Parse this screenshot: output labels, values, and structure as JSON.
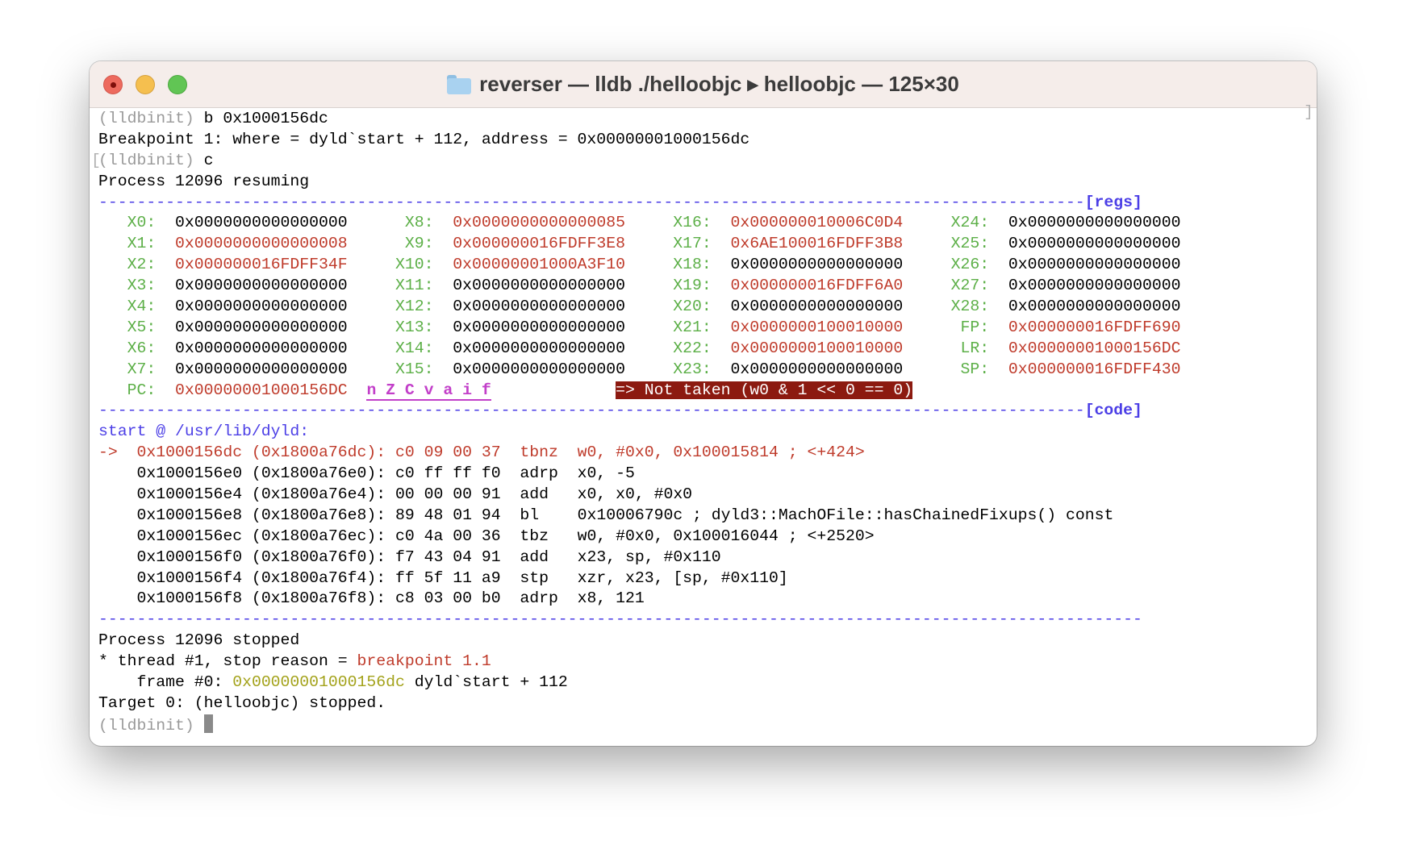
{
  "window": {
    "title": "reverser — lldb ./helloobjc ▸ helloobjc — 125×30",
    "folder_icon": "folder-icon",
    "traffic_lights": [
      "close",
      "minimize",
      "zoom"
    ]
  },
  "colors": {
    "register_name": "#5caf47",
    "changed_value": "#bf3b2b",
    "separator": "#4b3ee6",
    "flags": "#c23fc9",
    "branch_banner_bg": "#8c1a10",
    "frame_address": "#a3a21a",
    "prompt": "#9a9a9a"
  },
  "terminal": {
    "prompt": "(lldbinit)",
    "header_lines": [
      {
        "prompt": "(lldbinit)",
        "text": " b 0x1000156dc"
      },
      {
        "text": "Breakpoint 1: where = dyld`start + 112, address = 0x00000001000156dc"
      },
      {
        "prompt": "(lldbinit)",
        "text": " c",
        "bracketed": true
      },
      {
        "text": "Process 12096 resuming"
      }
    ],
    "regs_tag": "[regs]",
    "code_tag": "[code]",
    "registers": [
      [
        [
          "X0",
          "0x0000000000000000",
          false
        ],
        [
          "X8",
          "0x0000000000000085",
          true
        ],
        [
          "X16",
          "0x000000010006C0D4",
          true
        ],
        [
          "X24",
          "0x0000000000000000",
          false
        ]
      ],
      [
        [
          "X1",
          "0x0000000000000008",
          true
        ],
        [
          "X9",
          "0x000000016FDFF3E8",
          true
        ],
        [
          "X17",
          "0x6AE100016FDFF3B8",
          true
        ],
        [
          "X25",
          "0x0000000000000000",
          false
        ]
      ],
      [
        [
          "X2",
          "0x000000016FDFF34F",
          true
        ],
        [
          "X10",
          "0x00000001000A3F10",
          true
        ],
        [
          "X18",
          "0x0000000000000000",
          false
        ],
        [
          "X26",
          "0x0000000000000000",
          false
        ]
      ],
      [
        [
          "X3",
          "0x0000000000000000",
          false
        ],
        [
          "X11",
          "0x0000000000000000",
          false
        ],
        [
          "X19",
          "0x000000016FDFF6A0",
          true
        ],
        [
          "X27",
          "0x0000000000000000",
          false
        ]
      ],
      [
        [
          "X4",
          "0x0000000000000000",
          false
        ],
        [
          "X12",
          "0x0000000000000000",
          false
        ],
        [
          "X20",
          "0x0000000000000000",
          false
        ],
        [
          "X28",
          "0x0000000000000000",
          false
        ]
      ],
      [
        [
          "X5",
          "0x0000000000000000",
          false
        ],
        [
          "X13",
          "0x0000000000000000",
          false
        ],
        [
          "X21",
          "0x0000000100010000",
          true
        ],
        [
          "FP",
          "0x000000016FDFF690",
          true
        ]
      ],
      [
        [
          "X6",
          "0x0000000000000000",
          false
        ],
        [
          "X14",
          "0x0000000000000000",
          false
        ],
        [
          "X22",
          "0x0000000100010000",
          true
        ],
        [
          "LR",
          "0x00000001000156DC",
          true
        ]
      ],
      [
        [
          "X7",
          "0x0000000000000000",
          false
        ],
        [
          "X15",
          "0x0000000000000000",
          false
        ],
        [
          "X23",
          "0x0000000000000000",
          false
        ],
        [
          "SP",
          "0x000000016FDFF430",
          true
        ]
      ]
    ],
    "pc": {
      "name": "PC",
      "value": "0x00000001000156DC"
    },
    "flags": "n Z C v a i f",
    "branch_status": "=> Not taken (w0 & 1 << 0 == 0)",
    "code_location": "start @ /usr/lib/dyld:",
    "code": [
      {
        "current": true,
        "addr": "0x1000156dc",
        "file_addr": "0x1800a76dc",
        "bytes": "c0 09 00 37",
        "mnemonic": "tbnz",
        "operands": "w0, #0x0, 0x100015814 ; <+424>"
      },
      {
        "addr": "0x1000156e0",
        "file_addr": "0x1800a76e0",
        "bytes": "c0 ff ff f0",
        "mnemonic": "adrp",
        "operands": "x0, -5"
      },
      {
        "addr": "0x1000156e4",
        "file_addr": "0x1800a76e4",
        "bytes": "00 00 00 91",
        "mnemonic": "add",
        "operands": "x0, x0, #0x0"
      },
      {
        "addr": "0x1000156e8",
        "file_addr": "0x1800a76e8",
        "bytes": "89 48 01 94",
        "mnemonic": "bl",
        "operands": "0x10006790c ; dyld3::MachOFile::hasChainedFixups() const"
      },
      {
        "addr": "0x1000156ec",
        "file_addr": "0x1800a76ec",
        "bytes": "c0 4a 00 36",
        "mnemonic": "tbz",
        "operands": "w0, #0x0, 0x100016044 ; <+2520>"
      },
      {
        "addr": "0x1000156f0",
        "file_addr": "0x1800a76f0",
        "bytes": "f7 43 04 91",
        "mnemonic": "add",
        "operands": "x23, sp, #0x110"
      },
      {
        "addr": "0x1000156f4",
        "file_addr": "0x1800a76f4",
        "bytes": "ff 5f 11 a9",
        "mnemonic": "stp",
        "operands": "xzr, x23, [sp, #0x110]"
      },
      {
        "addr": "0x1000156f8",
        "file_addr": "0x1800a76f8",
        "bytes": "c8 03 00 b0",
        "mnemonic": "adrp",
        "operands": "x8, 121"
      }
    ],
    "stop": {
      "process_line": "Process 12096 stopped",
      "thread_prefix": "* thread #1, stop reason = ",
      "stop_reason": "breakpoint 1.1",
      "frame_prefix": "    frame #0: ",
      "frame_address": "0x00000001000156dc",
      "frame_symbol": " dyld`start + 112",
      "target_line": "Target 0: (helloobjc) stopped."
    }
  }
}
